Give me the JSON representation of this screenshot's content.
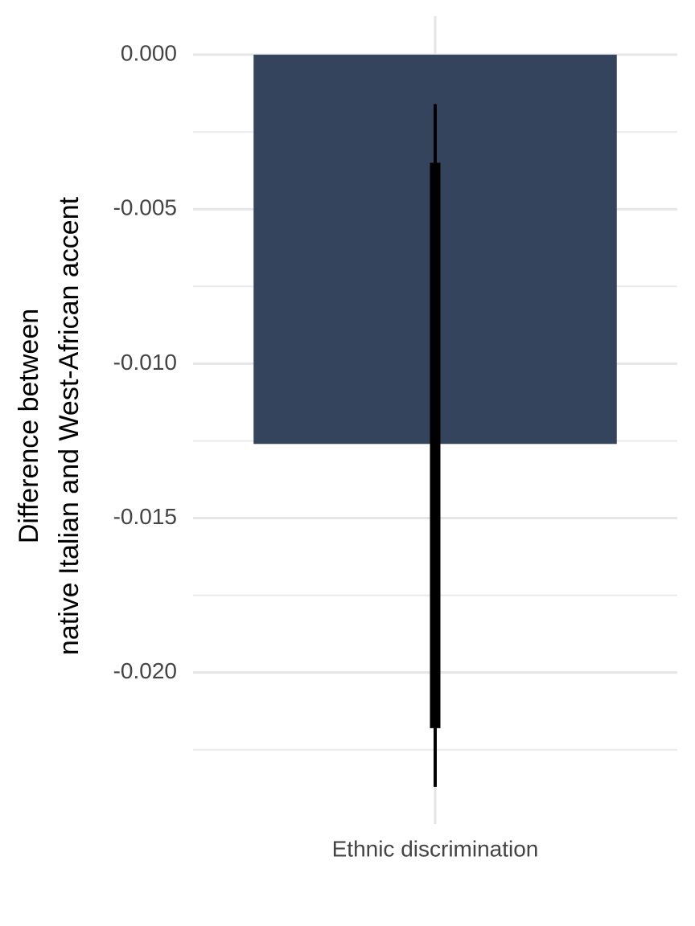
{
  "chart_data": {
    "type": "bar",
    "ylabel": [
      "Difference between",
      "native Italian and West-African accent"
    ],
    "categories": [
      "Ethnic discrimination"
    ],
    "values": [
      -0.0126
    ],
    "ci_outer": [
      [
        -0.0237,
        -0.0016
      ]
    ],
    "ci_inner": [
      [
        -0.0218,
        -0.0035
      ]
    ],
    "color": "#34445c",
    "error_color": "#000000",
    "ylim": [
      -0.0249,
      0.00125
    ],
    "yticks": [
      {
        "value": -0.02,
        "label": "-0.020"
      },
      {
        "value": -0.015,
        "label": "-0.015"
      },
      {
        "value": -0.01,
        "label": "-0.010"
      },
      {
        "value": -0.005,
        "label": "-0.005"
      },
      {
        "value": 0,
        "label": "0.000"
      }
    ],
    "minor_yticks": [
      -0.0225,
      -0.0175,
      -0.0125,
      -0.0075,
      -0.0025
    ],
    "grid": true
  }
}
